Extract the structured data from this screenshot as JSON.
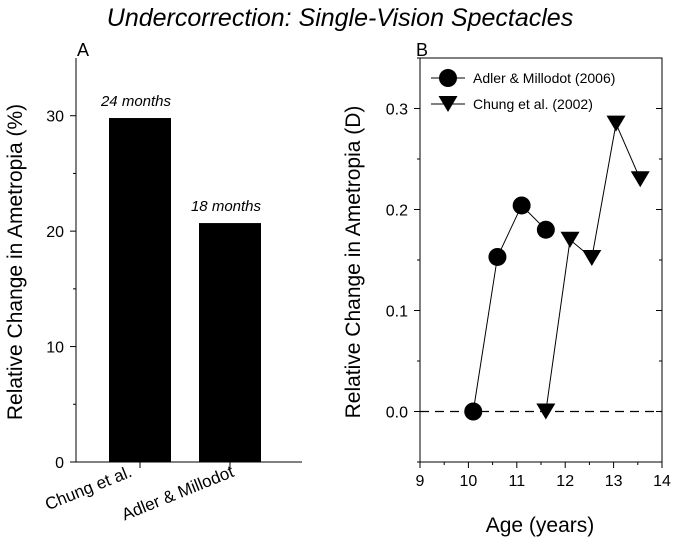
{
  "title": "Undercorrection: Single-Vision Spectacles",
  "chart_data": [
    {
      "panel_label": "A",
      "type": "bar",
      "title": "",
      "xlabel": "",
      "ylabel": "Relative Change in Ametropia (%)",
      "categories": [
        "Chung et al.",
        "Adler & Millodot"
      ],
      "values": [
        29.8,
        20.7
      ],
      "data_labels": [
        "24 months",
        "18 months"
      ],
      "ylim": [
        0,
        35
      ],
      "yticks": [
        "0",
        "10",
        "20",
        "30"
      ]
    },
    {
      "panel_label": "B",
      "type": "line",
      "title": "",
      "xlabel": "Age (years)",
      "ylabel": "Relative Change in Ametropia (D)",
      "xlim": [
        9,
        14
      ],
      "ylim": [
        -0.05,
        0.35
      ],
      "xticks": [
        "9",
        "10",
        "11",
        "12",
        "13",
        "14"
      ],
      "yticks": [
        "0.0",
        "0.1",
        "0.2",
        "0.3"
      ],
      "reference_line": {
        "y": 0.0,
        "style": "dashed"
      },
      "series": [
        {
          "name": "Adler & Millodot (2006)",
          "marker": "circle",
          "x": [
            10.1,
            10.6,
            11.1,
            11.6
          ],
          "y": [
            0.0,
            0.153,
            0.204,
            0.18
          ]
        },
        {
          "name": "Chung et al. (2002)",
          "marker": "triangle-down",
          "x": [
            11.6,
            12.1,
            12.55,
            13.05,
            13.55
          ],
          "y": [
            0.0,
            0.17,
            0.152,
            0.285,
            0.23
          ]
        }
      ],
      "legend_position": "top-left"
    }
  ]
}
